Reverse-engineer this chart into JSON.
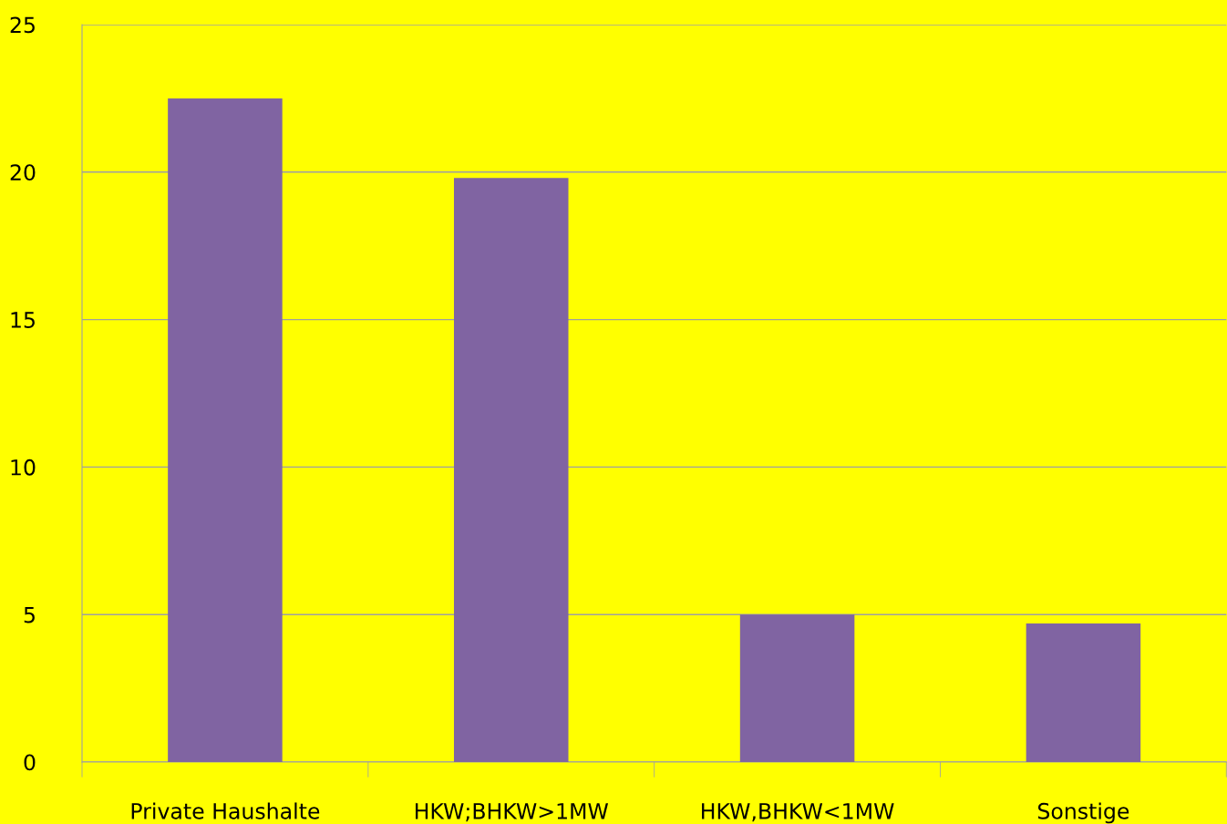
{
  "chart_data": {
    "type": "bar",
    "categories": [
      "Private Haushalte",
      "HKW;BHKW>1MW",
      "HKW,BHKW<1MW",
      "Sonstige"
    ],
    "values": [
      22.5,
      19.8,
      5.0,
      4.7
    ],
    "color": "#8064a2",
    "ylim": [
      0,
      25
    ],
    "yticks": [
      0,
      5,
      10,
      15,
      20,
      25
    ],
    "grid": "y"
  }
}
